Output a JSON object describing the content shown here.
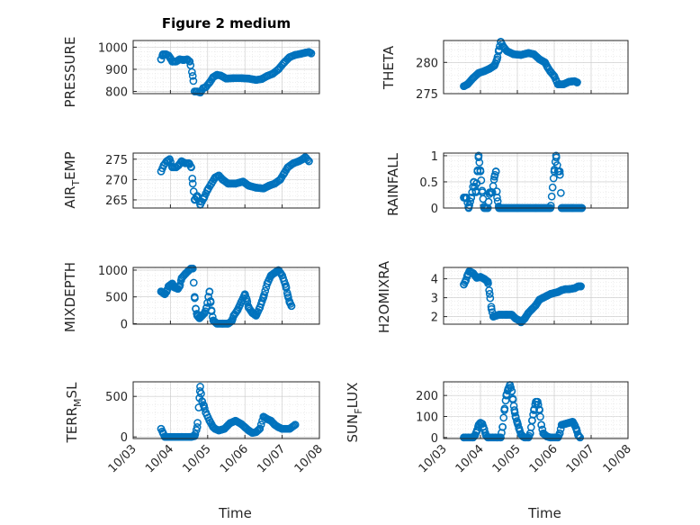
{
  "colors": {
    "marker": "#0072BD",
    "axis": "#262626",
    "grid": "#c8c8c8"
  },
  "chart_data": [
    {
      "type": "scatter",
      "title": "Figure 2 medium",
      "ylabel": "PRESSURE",
      "xlabel": "",
      "xlim": [
        3,
        8
      ],
      "ylim": [
        790,
        1030
      ],
      "yticks": [
        800,
        900,
        1000
      ],
      "ytick_labels": [
        "800",
        "900",
        "1000"
      ],
      "xticks": [
        3,
        4,
        5,
        6,
        7,
        8
      ],
      "xtick_labels": [],
      "grid": true,
      "keypoints": [
        [
          3.75,
          945
        ],
        [
          3.8,
          968
        ],
        [
          3.88,
          968
        ],
        [
          3.95,
          962
        ],
        [
          4.0,
          950
        ],
        [
          4.05,
          935
        ],
        [
          4.15,
          935
        ],
        [
          4.25,
          945
        ],
        [
          4.35,
          942
        ],
        [
          4.45,
          945
        ],
        [
          4.52,
          935
        ],
        [
          4.6,
          870
        ],
        [
          4.65,
          800
        ],
        [
          4.72,
          800
        ],
        [
          4.8,
          795
        ],
        [
          4.88,
          815
        ],
        [
          4.95,
          820
        ],
        [
          5.05,
          840
        ],
        [
          5.15,
          865
        ],
        [
          5.25,
          875
        ],
        [
          5.35,
          872
        ],
        [
          5.5,
          858
        ],
        [
          5.7,
          860
        ],
        [
          5.9,
          860
        ],
        [
          6.1,
          858
        ],
        [
          6.3,
          852
        ],
        [
          6.45,
          856
        ],
        [
          6.6,
          870
        ],
        [
          6.75,
          880
        ],
        [
          6.9,
          900
        ],
        [
          7.05,
          930
        ],
        [
          7.2,
          955
        ],
        [
          7.35,
          965
        ],
        [
          7.5,
          970
        ],
        [
          7.62,
          975
        ],
        [
          7.72,
          978
        ],
        [
          7.78,
          972
        ]
      ],
      "n_points": 108
    },
    {
      "type": "scatter",
      "title": "",
      "ylabel": "THETA",
      "xlabel": "",
      "xlim": [
        3,
        8
      ],
      "ylim": [
        275,
        283.5
      ],
      "yticks": [
        275,
        280
      ],
      "ytick_labels": [
        "275",
        "280"
      ],
      "xticks": [
        3,
        4,
        5,
        6,
        7,
        8
      ],
      "xtick_labels": [],
      "grid": true,
      "keypoints": [
        [
          3.55,
          276.2
        ],
        [
          3.65,
          276.5
        ],
        [
          3.8,
          277.5
        ],
        [
          3.95,
          278.3
        ],
        [
          4.1,
          278.6
        ],
        [
          4.25,
          279.0
        ],
        [
          4.38,
          279.5
        ],
        [
          4.45,
          280.5
        ],
        [
          4.5,
          282.0
        ],
        [
          4.55,
          283.3
        ],
        [
          4.62,
          282.5
        ],
        [
          4.72,
          281.8
        ],
        [
          4.9,
          281.3
        ],
        [
          5.1,
          281.2
        ],
        [
          5.3,
          281.5
        ],
        [
          5.45,
          281.3
        ],
        [
          5.6,
          280.5
        ],
        [
          5.75,
          280.0
        ],
        [
          5.82,
          279.2
        ],
        [
          5.9,
          278.5
        ],
        [
          6.0,
          277.8
        ],
        [
          6.1,
          276.5
        ],
        [
          6.25,
          276.5
        ],
        [
          6.4,
          276.9
        ],
        [
          6.55,
          277.0
        ],
        [
          6.62,
          276.8
        ]
      ],
      "n_points": 102
    },
    {
      "type": "scatter",
      "title": "",
      "ylabel": "AIR_TEMP",
      "xlabel": "",
      "xlim": [
        3,
        8
      ],
      "ylim": [
        263,
        276.5
      ],
      "yticks": [
        265,
        270,
        275
      ],
      "ytick_labels": [
        "265",
        "270",
        "275"
      ],
      "xticks": [
        3,
        4,
        5,
        6,
        7,
        8
      ],
      "xtick_labels": [],
      "grid": true,
      "keypoints": [
        [
          3.75,
          272
        ],
        [
          3.82,
          273.5
        ],
        [
          3.9,
          274.5
        ],
        [
          3.98,
          275
        ],
        [
          4.05,
          273
        ],
        [
          4.15,
          273
        ],
        [
          4.22,
          273.5
        ],
        [
          4.3,
          274.5
        ],
        [
          4.4,
          274
        ],
        [
          4.5,
          274
        ],
        [
          4.56,
          273
        ],
        [
          4.6,
          269
        ],
        [
          4.65,
          265
        ],
        [
          4.72,
          266
        ],
        [
          4.8,
          263.8
        ],
        [
          4.9,
          265.5
        ],
        [
          5.0,
          267.5
        ],
        [
          5.1,
          269
        ],
        [
          5.2,
          270.5
        ],
        [
          5.3,
          271
        ],
        [
          5.4,
          270
        ],
        [
          5.55,
          269
        ],
        [
          5.75,
          269
        ],
        [
          5.95,
          269.5
        ],
        [
          6.1,
          268.5
        ],
        [
          6.3,
          268
        ],
        [
          6.5,
          267.8
        ],
        [
          6.65,
          268.5
        ],
        [
          6.8,
          269
        ],
        [
          6.95,
          270
        ],
        [
          7.05,
          271.5
        ],
        [
          7.15,
          273
        ],
        [
          7.3,
          274
        ],
        [
          7.45,
          274.5
        ],
        [
          7.55,
          275
        ],
        [
          7.62,
          275.5
        ],
        [
          7.72,
          274.5
        ]
      ],
      "n_points": 110
    },
    {
      "type": "scatter",
      "title": "",
      "ylabel": "RAINFALL",
      "xlabel": "",
      "xlim": [
        3,
        8
      ],
      "ylim": [
        0,
        1.05
      ],
      "yticks": [
        0,
        0.5,
        1
      ],
      "ytick_labels": [
        "0",
        "0.5",
        "1"
      ],
      "xticks": [
        3,
        4,
        5,
        6,
        7,
        8
      ],
      "xtick_labels": [],
      "grid": true,
      "keypoints": [
        [
          3.55,
          0.2
        ],
        [
          3.62,
          0.2
        ],
        [
          3.68,
          0.0
        ],
        [
          3.75,
          0.2
        ],
        [
          3.82,
          0.5
        ],
        [
          3.88,
          0.3
        ],
        [
          3.92,
          0.7
        ],
        [
          3.95,
          1.0
        ],
        [
          4.0,
          0.7
        ],
        [
          4.05,
          0.3
        ],
        [
          4.1,
          0.0
        ],
        [
          4.2,
          0.0
        ],
        [
          4.25,
          0.3
        ],
        [
          4.32,
          0.3
        ],
        [
          4.38,
          0.6
        ],
        [
          4.42,
          0.7
        ],
        [
          4.45,
          0.2
        ],
        [
          4.5,
          0.0
        ],
        [
          5.0,
          0.0
        ],
        [
          5.5,
          0.0
        ],
        [
          5.9,
          0.0
        ],
        [
          6.0,
          0.7
        ],
        [
          6.05,
          1.0
        ],
        [
          6.1,
          0.7
        ],
        [
          6.15,
          0.7
        ],
        [
          6.2,
          0.0
        ],
        [
          6.5,
          0.0
        ],
        [
          6.75,
          0.0
        ]
      ],
      "n_points": 130
    },
    {
      "type": "scatter",
      "title": "",
      "ylabel": "MIXDEPTH",
      "xlabel": "",
      "xlim": [
        3,
        8
      ],
      "ylim": [
        -10,
        1050
      ],
      "yticks": [
        0,
        500,
        1000
      ],
      "ytick_labels": [
        "0",
        "500",
        "1000"
      ],
      "xticks": [
        3,
        4,
        5,
        6,
        7,
        8
      ],
      "xtick_labels": [],
      "grid": true,
      "keypoints": [
        [
          3.75,
          600
        ],
        [
          3.85,
          550
        ],
        [
          3.9,
          600
        ],
        [
          3.95,
          700
        ],
        [
          4.05,
          750
        ],
        [
          4.1,
          680
        ],
        [
          4.2,
          650
        ],
        [
          4.25,
          700
        ],
        [
          4.3,
          850
        ],
        [
          4.4,
          930
        ],
        [
          4.5,
          1000
        ],
        [
          4.55,
          1030
        ],
        [
          4.6,
          1030
        ],
        [
          4.65,
          500
        ],
        [
          4.68,
          280
        ],
        [
          4.72,
          150
        ],
        [
          4.78,
          100
        ],
        [
          4.85,
          150
        ],
        [
          4.92,
          200
        ],
        [
          4.97,
          300
        ],
        [
          5.02,
          500
        ],
        [
          5.05,
          600
        ],
        [
          5.08,
          400
        ],
        [
          5.1,
          250
        ],
        [
          5.15,
          60
        ],
        [
          5.25,
          0
        ],
        [
          5.4,
          0
        ],
        [
          5.55,
          0
        ],
        [
          5.65,
          50
        ],
        [
          5.7,
          150
        ],
        [
          5.8,
          250
        ],
        [
          5.9,
          400
        ],
        [
          6.0,
          550
        ],
        [
          6.05,
          450
        ],
        [
          6.1,
          300
        ],
        [
          6.2,
          200
        ],
        [
          6.3,
          150
        ],
        [
          6.4,
          300
        ],
        [
          6.5,
          500
        ],
        [
          6.6,
          750
        ],
        [
          6.7,
          900
        ],
        [
          6.8,
          950
        ],
        [
          6.9,
          1000
        ],
        [
          6.95,
          950
        ],
        [
          7.0,
          900
        ],
        [
          7.1,
          700
        ],
        [
          7.15,
          530
        ],
        [
          7.2,
          400
        ],
        [
          7.25,
          330
        ]
      ],
      "n_points": 125
    },
    {
      "type": "scatter",
      "title": "",
      "ylabel": "H2OMIXRA",
      "xlabel": "",
      "xlim": [
        3,
        8
      ],
      "ylim": [
        1.6,
        4.6
      ],
      "yticks": [
        2,
        3,
        4
      ],
      "ytick_labels": [
        "2",
        "3",
        "4"
      ],
      "xticks": [
        3,
        4,
        5,
        6,
        7,
        8
      ],
      "xtick_labels": [],
      "grid": true,
      "keypoints": [
        [
          3.55,
          3.7
        ],
        [
          3.6,
          3.9
        ],
        [
          3.65,
          4.2
        ],
        [
          3.7,
          4.4
        ],
        [
          3.8,
          4.3
        ],
        [
          3.9,
          4.05
        ],
        [
          4.0,
          4.1
        ],
        [
          4.1,
          4.0
        ],
        [
          4.2,
          3.85
        ],
        [
          4.25,
          3.2
        ],
        [
          4.3,
          2.4
        ],
        [
          4.35,
          2.0
        ],
        [
          4.5,
          2.1
        ],
        [
          4.7,
          2.1
        ],
        [
          4.85,
          2.1
        ],
        [
          4.95,
          1.9
        ],
        [
          5.05,
          1.8
        ],
        [
          5.1,
          1.7
        ],
        [
          5.2,
          1.9
        ],
        [
          5.3,
          2.2
        ],
        [
          5.4,
          2.4
        ],
        [
          5.5,
          2.6
        ],
        [
          5.6,
          2.9
        ],
        [
          5.7,
          3.0
        ],
        [
          5.8,
          3.1
        ],
        [
          5.9,
          3.2
        ],
        [
          6.0,
          3.25
        ],
        [
          6.1,
          3.3
        ],
        [
          6.2,
          3.4
        ],
        [
          6.3,
          3.45
        ],
        [
          6.4,
          3.45
        ],
        [
          6.55,
          3.5
        ],
        [
          6.65,
          3.6
        ],
        [
          6.72,
          3.6
        ]
      ],
      "n_points": 112
    },
    {
      "type": "scatter",
      "title": "",
      "ylabel": "TERR_MSL",
      "xlabel": "Time",
      "xlim": [
        3,
        8
      ],
      "ylim": [
        -20,
        680
      ],
      "yticks": [
        0,
        500
      ],
      "ytick_labels": [
        "0",
        "500"
      ],
      "xticks": [
        3,
        4,
        5,
        6,
        7,
        8
      ],
      "xtick_labels": [
        "10/03",
        "10/04",
        "10/05",
        "10/06",
        "10/07",
        "10/08"
      ],
      "grid": true,
      "keypoints": [
        [
          3.75,
          100
        ],
        [
          3.8,
          50
        ],
        [
          3.85,
          0
        ],
        [
          4.0,
          0
        ],
        [
          4.3,
          0
        ],
        [
          4.55,
          0
        ],
        [
          4.65,
          10
        ],
        [
          4.72,
          120
        ],
        [
          4.78,
          480
        ],
        [
          4.8,
          620
        ],
        [
          4.85,
          440
        ],
        [
          4.9,
          380
        ],
        [
          4.95,
          300
        ],
        [
          5.05,
          200
        ],
        [
          5.15,
          120
        ],
        [
          5.2,
          100
        ],
        [
          5.3,
          80
        ],
        [
          5.45,
          100
        ],
        [
          5.6,
          170
        ],
        [
          5.75,
          200
        ],
        [
          5.9,
          160
        ],
        [
          6.0,
          120
        ],
        [
          6.1,
          80
        ],
        [
          6.2,
          50
        ],
        [
          6.3,
          60
        ],
        [
          6.4,
          100
        ],
        [
          6.5,
          250
        ],
        [
          6.6,
          220
        ],
        [
          6.7,
          200
        ],
        [
          6.8,
          150
        ],
        [
          6.9,
          120
        ],
        [
          7.0,
          100
        ],
        [
          7.2,
          100
        ],
        [
          7.35,
          150
        ]
      ],
      "n_points": 115
    },
    {
      "type": "scatter",
      "title": "",
      "ylabel": "SUN_FLUX",
      "xlabel": "Time",
      "xlim": [
        3,
        8
      ],
      "ylim": [
        -5,
        265
      ],
      "yticks": [
        0,
        100,
        200
      ],
      "ytick_labels": [
        "0",
        "100",
        "200"
      ],
      "xticks": [
        3,
        4,
        5,
        6,
        7,
        8
      ],
      "xtick_labels": [
        "10/03",
        "10/04",
        "10/05",
        "10/06",
        "10/07",
        "10/08"
      ],
      "grid": true,
      "keypoints": [
        [
          3.55,
          0
        ],
        [
          3.8,
          0
        ],
        [
          3.85,
          10
        ],
        [
          3.9,
          30
        ],
        [
          3.95,
          60
        ],
        [
          4.0,
          70
        ],
        [
          4.05,
          65
        ],
        [
          4.1,
          40
        ],
        [
          4.15,
          10
        ],
        [
          4.2,
          0
        ],
        [
          4.45,
          0
        ],
        [
          4.55,
          0
        ],
        [
          4.6,
          50
        ],
        [
          4.65,
          130
        ],
        [
          4.7,
          200
        ],
        [
          4.75,
          230
        ],
        [
          4.8,
          250
        ],
        [
          4.85,
          220
        ],
        [
          4.88,
          180
        ],
        [
          4.92,
          130
        ],
        [
          4.95,
          100
        ],
        [
          5.0,
          70
        ],
        [
          5.05,
          40
        ],
        [
          5.1,
          15
        ],
        [
          5.15,
          5
        ],
        [
          5.2,
          0
        ],
        [
          5.3,
          0
        ],
        [
          5.35,
          20
        ],
        [
          5.4,
          80
        ],
        [
          5.45,
          130
        ],
        [
          5.5,
          170
        ],
        [
          5.55,
          170
        ],
        [
          5.6,
          130
        ],
        [
          5.65,
          60
        ],
        [
          5.7,
          20
        ],
        [
          5.8,
          5
        ],
        [
          5.9,
          0
        ],
        [
          6.1,
          0
        ],
        [
          6.15,
          20
        ],
        [
          6.2,
          60
        ],
        [
          6.3,
          65
        ],
        [
          6.4,
          70
        ],
        [
          6.5,
          75
        ],
        [
          6.55,
          60
        ],
        [
          6.6,
          40
        ],
        [
          6.65,
          10
        ],
        [
          6.7,
          0
        ]
      ],
      "n_points": 115
    }
  ]
}
